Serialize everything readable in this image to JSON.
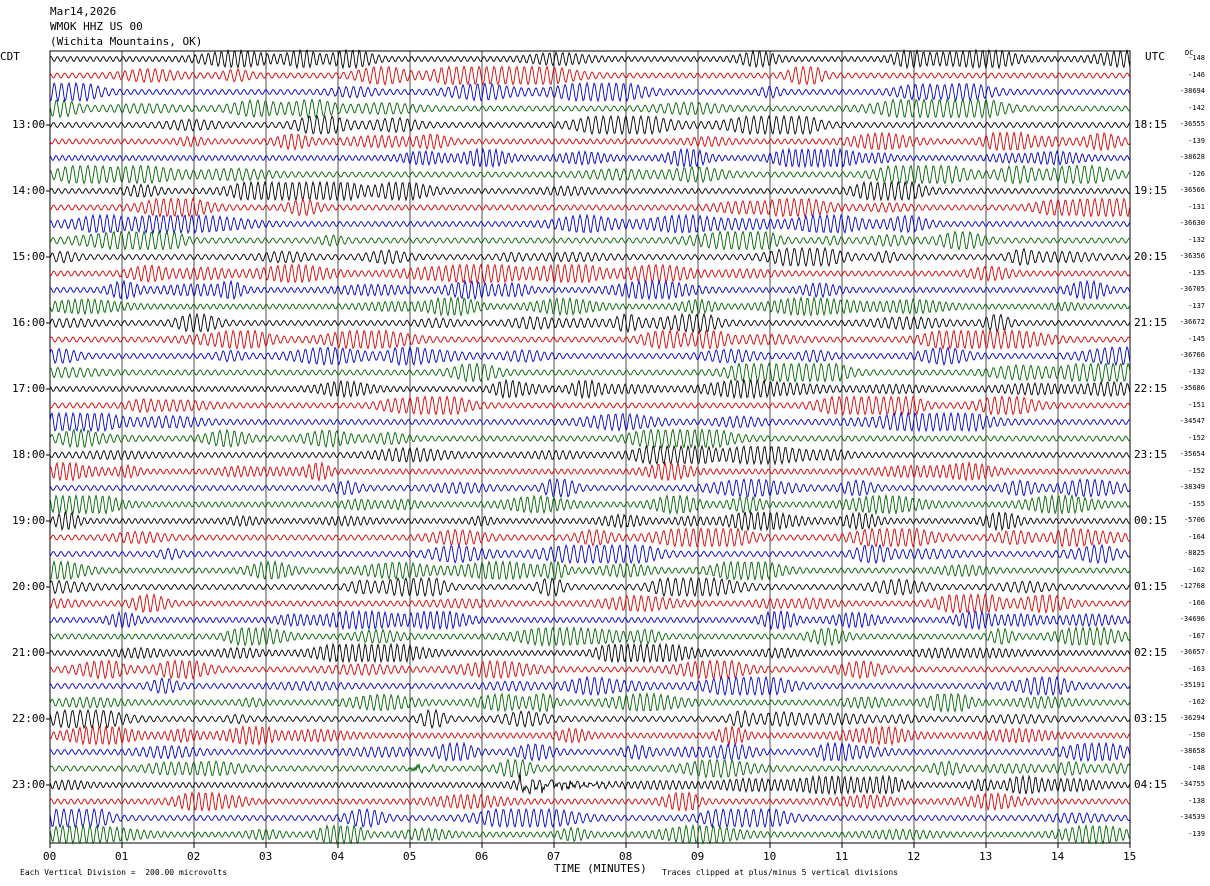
{
  "header": {
    "date": "Mar14,2026",
    "station": "WMOK HHZ US 00",
    "location": "(Wichita Mountains, OK)"
  },
  "axes": {
    "left_tz": "CDT",
    "right_tz": "UTC",
    "dc_label": "DC",
    "x_title": "TIME (MINUTES)"
  },
  "footer": {
    "scale_note": "Each Vertical Division =  200.00 microvolts",
    "clip_note": "Traces clipped at plus/minus 5 vertical divisions"
  },
  "colors": {
    "trace_cycle": [
      "#000000",
      "#dd0000",
      "#0000cc",
      "#006600"
    ],
    "grid": "#000000"
  },
  "chart_data": {
    "type": "line",
    "title": "",
    "xlabel": "TIME (MINUTES)",
    "ylabel": "",
    "xlim": [
      0,
      15
    ],
    "x_ticks": [
      "00",
      "01",
      "02",
      "03",
      "04",
      "05",
      "06",
      "07",
      "08",
      "09",
      "10",
      "11",
      "12",
      "13",
      "14",
      "15"
    ],
    "left_hour_labels": [
      "13:00",
      "14:00",
      "15:00",
      "16:00",
      "17:00",
      "18:00",
      "19:00",
      "20:00",
      "21:00",
      "22:00",
      "23:00"
    ],
    "right_hour_labels": [
      "18:15",
      "19:15",
      "20:15",
      "21:15",
      "22:15",
      "23:15",
      "00:15",
      "01:15",
      "02:15",
      "03:15",
      "04:15"
    ],
    "traces_per_hour": 4,
    "trace_count": 48,
    "dc_offsets": [
      "-148",
      "-146",
      "-38694",
      "-142",
      "-36555",
      "-139",
      "-38628",
      "-126",
      "-36566",
      "-131",
      "-36630",
      "-132",
      "-36356",
      "-135",
      "-36705",
      "-137",
      "-36672",
      "-145",
      "-36766",
      "-132",
      "-35686",
      "-151",
      "-34547",
      "-152",
      "-35654",
      "-152",
      "-38349",
      "-155",
      "-5706",
      "-164",
      "-8825",
      "-162",
      "-12768",
      "-166",
      "-34696",
      "-167",
      "-36657",
      "-163",
      "-35191",
      "-162",
      "-36294",
      "-150",
      "-38658",
      "-148",
      "-34755",
      "-138",
      "-34539",
      "-139"
    ],
    "events": [
      {
        "trace": 43,
        "start_min": 5.0,
        "end_min": 5.6,
        "amplitude": "moderate"
      },
      {
        "trace": 44,
        "start_min": 6.5,
        "end_min": 8.0,
        "amplitude": "large"
      }
    ]
  }
}
